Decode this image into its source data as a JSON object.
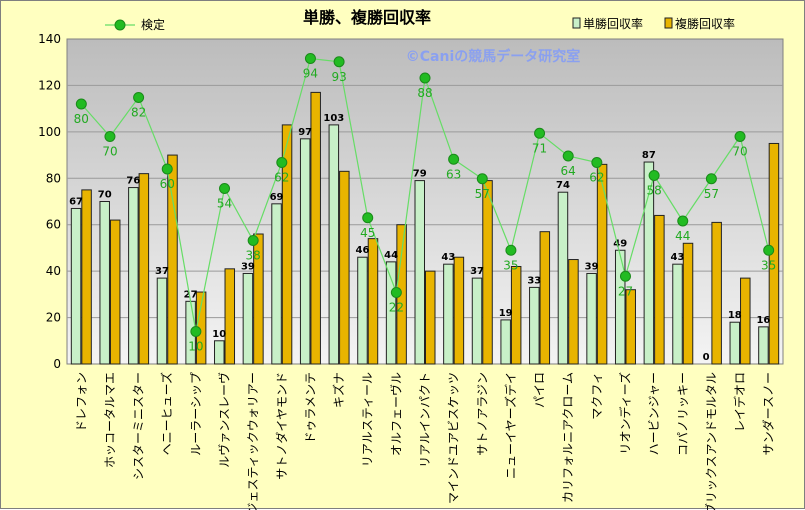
{
  "chart_data": {
    "type": "bar",
    "title": "単勝、複勝回収率",
    "watermark": "©Caniの競馬データ研究室",
    "xlabel": "",
    "ylabel": "",
    "ylim": [
      0,
      140
    ],
    "yticks": [
      0,
      20,
      40,
      60,
      80,
      100,
      120,
      140
    ],
    "grid": true,
    "legend": "top",
    "categories": [
      "ドレフォン",
      "ホッコータルマエ",
      "シスターミニスター",
      "ヘニーヒューズ",
      "ルーラーシップ",
      "ルヴァンスレーヴ",
      "マジェスティックウォリアー",
      "サトノダイヤモンド",
      "ドゥラメンテ",
      "キズナ",
      "リアルスティール",
      "オルフェーヴル",
      "リアルインパクト",
      "マインドユアビスケッツ",
      "サトノアラジン",
      "ニューイヤーズデイ",
      "パイロ",
      "カリフォルニアクローム",
      "マクフィ",
      "リオンディーズ",
      "ハービンジャー",
      "コパノリッキー",
      "ブリックスアンドモルタル",
      "レイデオロ",
      "サンダースノー"
    ],
    "series": [
      {
        "name": "単勝回収率",
        "type": "bar",
        "color": "#c8f0c8",
        "values": [
          67,
          70,
          76,
          37,
          27,
          10,
          39,
          69,
          97,
          103,
          46,
          44,
          79,
          43,
          37,
          19,
          33,
          74,
          39,
          49,
          87,
          43,
          0,
          18,
          16
        ]
      },
      {
        "name": "複勝回収率",
        "type": "bar",
        "color": "#e8b400",
        "values": [
          75,
          62,
          82,
          90,
          31,
          41,
          56,
          103,
          117,
          83,
          54,
          60,
          40,
          46,
          79,
          42,
          57,
          45,
          86,
          32,
          64,
          52,
          61,
          37,
          95
        ]
      },
      {
        "name": "検定",
        "type": "line",
        "color": "#22aa22",
        "values": [
          80,
          70,
          82,
          60,
          10,
          54,
          38,
          62,
          94,
          93,
          45,
          22,
          88,
          63,
          57,
          35,
          71,
          64,
          62,
          27,
          58,
          44,
          57,
          70,
          35
        ]
      }
    ]
  }
}
